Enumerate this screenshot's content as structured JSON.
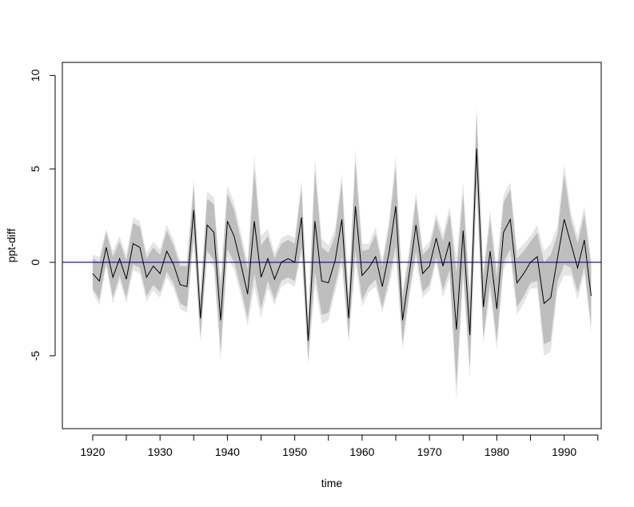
{
  "chart_data": {
    "type": "line",
    "title": "",
    "xlabel": "time",
    "ylabel": "ppt-diff",
    "xlim": [
      1915.5,
      1995.5
    ],
    "ylim": [
      -8.9,
      10.7
    ],
    "x_ticks": [
      1920,
      1930,
      1940,
      1950,
      1960,
      1970,
      1980,
      1990
    ],
    "y_ticks": [
      -5,
      0,
      5,
      10
    ],
    "reference_line": {
      "y": 0,
      "color": "#1a1aa0"
    },
    "colors": {
      "line": "#000000",
      "band_outer": "#e5e5e5",
      "band_inner": "#bebebe"
    },
    "grid": false,
    "x": [
      1920,
      1921,
      1922,
      1923,
      1924,
      1925,
      1926,
      1927,
      1928,
      1929,
      1930,
      1931,
      1932,
      1933,
      1934,
      1935,
      1936,
      1937,
      1938,
      1939,
      1940,
      1941,
      1942,
      1943,
      1944,
      1945,
      1946,
      1947,
      1948,
      1949,
      1950,
      1951,
      1952,
      1953,
      1954,
      1955,
      1956,
      1957,
      1958,
      1959,
      1960,
      1961,
      1962,
      1963,
      1964,
      1965,
      1966,
      1967,
      1968,
      1969,
      1970,
      1971,
      1972,
      1973,
      1974,
      1975,
      1976,
      1977,
      1978,
      1979,
      1980,
      1981,
      1982,
      1983,
      1984,
      1985,
      1986,
      1987,
      1988,
      1989,
      1990,
      1991,
      1992,
      1993,
      1994
    ],
    "series": [
      {
        "values": [
          -0.6,
          -1.0,
          0.8,
          -0.8,
          0.2,
          -0.9,
          1.0,
          0.8,
          -0.8,
          -0.2,
          -0.6,
          0.6,
          -0.1,
          -1.2,
          -1.3,
          2.8,
          -3.0,
          2.0,
          1.6,
          -3.1,
          2.2,
          1.4,
          -0.1,
          -1.7,
          2.2,
          -0.8,
          0.2,
          -0.9,
          0.0,
          0.2,
          0.0,
          2.4,
          -4.2,
          2.2,
          -1.0,
          -1.1,
          0.1,
          2.3,
          -3.0,
          3.0,
          -0.7,
          -0.3,
          0.3,
          -1.3,
          0.5,
          3.0,
          -3.1,
          -0.6,
          2.0,
          -0.6,
          -0.2,
          1.3,
          -0.2,
          1.1,
          -3.6,
          1.7,
          -3.9,
          6.1,
          -2.4,
          0.6,
          -2.5,
          1.6,
          2.3,
          -1.1,
          -0.6,
          0.0,
          0.3,
          -2.2,
          -1.9,
          0.2,
          2.3,
          1.0,
          -0.3,
          1.2,
          -1.8
        ],
        "band_inner_halfwidth": [
          0.8,
          1.0,
          0.8,
          1.1,
          0.9,
          1.0,
          1.1,
          1.1,
          1.0,
          1.0,
          1.0,
          1.1,
          1.0,
          1.0,
          1.1,
          1.3,
          1.0,
          1.4,
          1.5,
          1.7,
          1.5,
          1.4,
          1.3,
          1.3,
          2.8,
          1.7,
          1.2,
          1.1,
          1.0,
          1.0,
          1.0,
          1.6,
          1.0,
          2.7,
          1.8,
          1.6,
          1.3,
          2.0,
          1.0,
          2.4,
          1.3,
          1.0,
          1.2,
          1.1,
          1.4,
          2.1,
          1.2,
          1.0,
          1.4,
          1.0,
          1.0,
          1.0,
          1.3,
          1.5,
          3.0,
          2.0,
          1.8,
          1.8,
          1.6,
          1.7,
          1.7,
          1.6,
          1.6,
          1.3,
          1.2,
          1.1,
          1.3,
          2.2,
          2.3,
          1.3,
          2.4,
          1.3,
          1.3,
          1.4,
          1.6
        ],
        "band_outer_halfwidth": [
          1.0,
          1.3,
          1.0,
          1.4,
          1.2,
          1.3,
          1.4,
          1.4,
          1.3,
          1.3,
          1.3,
          1.4,
          1.3,
          1.3,
          1.4,
          1.7,
          1.3,
          1.8,
          1.9,
          2.2,
          1.9,
          1.8,
          1.7,
          1.7,
          3.5,
          2.2,
          1.6,
          1.4,
          1.3,
          1.3,
          1.3,
          2.0,
          1.3,
          3.4,
          2.3,
          2.0,
          1.7,
          2.5,
          1.3,
          3.1,
          1.7,
          1.3,
          1.6,
          1.4,
          1.8,
          2.7,
          1.6,
          1.3,
          1.8,
          1.3,
          1.3,
          1.3,
          1.7,
          1.9,
          3.8,
          2.6,
          2.3,
          2.3,
          2.0,
          2.2,
          2.2,
          2.0,
          2.0,
          1.7,
          1.6,
          1.4,
          1.7,
          2.8,
          2.9,
          1.7,
          3.0,
          1.7,
          1.7,
          1.8,
          2.0
        ]
      }
    ]
  }
}
